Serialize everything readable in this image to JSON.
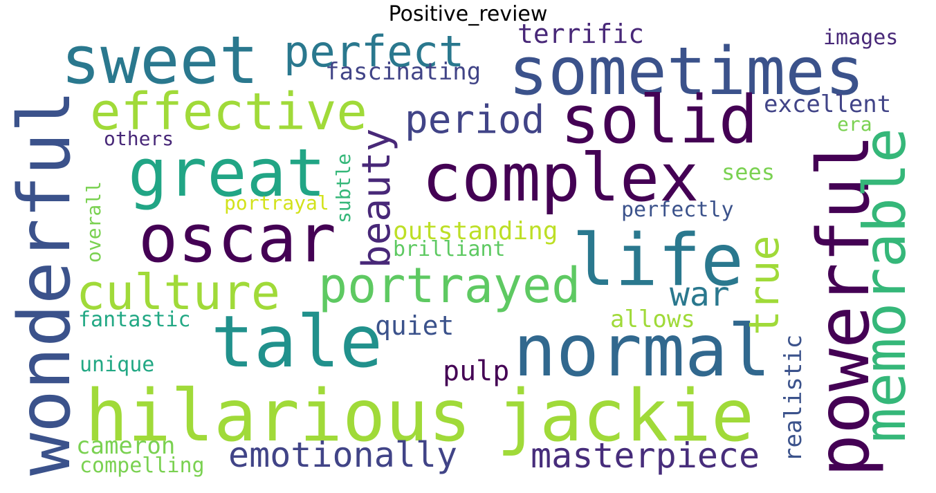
{
  "chart_data": {
    "type": "wordcloud",
    "title": "Positive_review",
    "words": [
      {
        "text": "sweet",
        "color": "#2a788e",
        "vertical": false
      },
      {
        "text": "perfect",
        "color": "#2a788e",
        "vertical": false
      },
      {
        "text": "terrific",
        "color": "#482878",
        "vertical": false
      },
      {
        "text": "images",
        "color": "#482878",
        "vertical": false
      },
      {
        "text": "sometimes",
        "color": "#3b528b",
        "vertical": false
      },
      {
        "text": "fascinating",
        "color": "#414487",
        "vertical": false
      },
      {
        "text": "effective",
        "color": "#a0da39",
        "vertical": false
      },
      {
        "text": "solid",
        "color": "#440154",
        "vertical": false
      },
      {
        "text": "period",
        "color": "#414487",
        "vertical": false
      },
      {
        "text": "excellent",
        "color": "#414487",
        "vertical": false
      },
      {
        "text": "era",
        "color": "#7ad151",
        "vertical": false
      },
      {
        "text": "others",
        "color": "#482878",
        "vertical": false
      },
      {
        "text": "great",
        "color": "#21a585",
        "vertical": false
      },
      {
        "text": "complex",
        "color": "#440154",
        "vertical": false
      },
      {
        "text": "sees",
        "color": "#7ad151",
        "vertical": false
      },
      {
        "text": "portrayal",
        "color": "#d2e21b",
        "vertical": false
      },
      {
        "text": "perfectly",
        "color": "#3b528b",
        "vertical": false
      },
      {
        "text": "oscar",
        "color": "#440154",
        "vertical": false
      },
      {
        "text": "outstanding",
        "color": "#bddf26",
        "vertical": false
      },
      {
        "text": "brilliant",
        "color": "#5ec962",
        "vertical": false
      },
      {
        "text": "life",
        "color": "#2a788e",
        "vertical": false
      },
      {
        "text": "culture",
        "color": "#a0da39",
        "vertical": false
      },
      {
        "text": "portrayed",
        "color": "#5ec962",
        "vertical": false
      },
      {
        "text": "war",
        "color": "#2a788e",
        "vertical": false
      },
      {
        "text": "fantastic",
        "color": "#22a884",
        "vertical": false
      },
      {
        "text": "quiet",
        "color": "#3b528b",
        "vertical": false
      },
      {
        "text": "allows",
        "color": "#a0da39",
        "vertical": false
      },
      {
        "text": "tale",
        "color": "#21918c",
        "vertical": false
      },
      {
        "text": "normal",
        "color": "#31688e",
        "vertical": false
      },
      {
        "text": "unique",
        "color": "#22a884",
        "vertical": false
      },
      {
        "text": "pulp",
        "color": "#440154",
        "vertical": false
      },
      {
        "text": "hilarious",
        "color": "#a0da39",
        "vertical": false
      },
      {
        "text": "jackie",
        "color": "#a0da39",
        "vertical": false
      },
      {
        "text": "cameron",
        "color": "#7ad151",
        "vertical": false
      },
      {
        "text": "compelling",
        "color": "#7ad151",
        "vertical": false
      },
      {
        "text": "emotionally",
        "color": "#414487",
        "vertical": false
      },
      {
        "text": "masterpiece",
        "color": "#472d7b",
        "vertical": false
      },
      {
        "text": "wonderful",
        "color": "#3b528b",
        "vertical": true
      },
      {
        "text": "beauty",
        "color": "#482878",
        "vertical": true
      },
      {
        "text": "subtle",
        "color": "#35b779",
        "vertical": true
      },
      {
        "text": "overall",
        "color": "#7ad151",
        "vertical": true
      },
      {
        "text": "true",
        "color": "#a0da39",
        "vertical": true
      },
      {
        "text": "realistic",
        "color": "#3b528b",
        "vertical": true
      },
      {
        "text": "powerful",
        "color": "#440154",
        "vertical": true
      },
      {
        "text": "memorable",
        "color": "#35b779",
        "vertical": true
      }
    ]
  }
}
